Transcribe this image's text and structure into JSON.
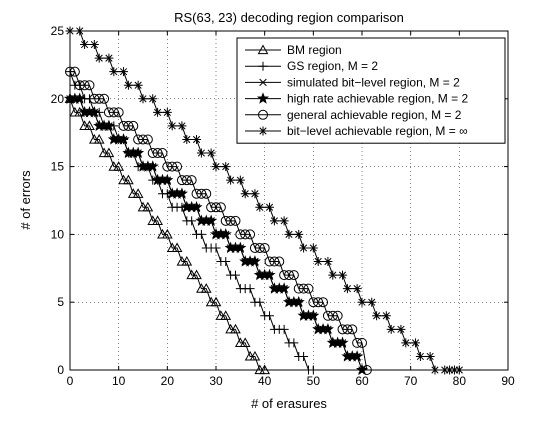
{
  "chart_data": {
    "type": "line",
    "title": "RS(63, 23) decoding region comparison",
    "xlabel": "# of erasures",
    "ylabel": "# of errors",
    "xlim": [
      0,
      90
    ],
    "ylim": [
      0,
      25
    ],
    "xticks": [
      0,
      10,
      20,
      30,
      40,
      50,
      60,
      70,
      80,
      90
    ],
    "yticks": [
      0,
      5,
      10,
      15,
      20,
      25
    ],
    "xtick_labels": [
      "0",
      "10",
      "20",
      "30",
      "40",
      "50",
      "60",
      "70",
      "80",
      "90"
    ],
    "ytick_labels": [
      "0",
      "5",
      "10",
      "15",
      "20",
      "25"
    ],
    "grid": true,
    "legend_position": "top-right",
    "line_color": "#000000",
    "series": [
      {
        "name": "BM region",
        "marker": "triangle",
        "points": [
          [
            0,
            20
          ],
          [
            1,
            19
          ],
          [
            2,
            19
          ],
          [
            3,
            18
          ],
          [
            4,
            18
          ],
          [
            5,
            17
          ],
          [
            6,
            17
          ],
          [
            7,
            16
          ],
          [
            8,
            16
          ],
          [
            9,
            15
          ],
          [
            10,
            15
          ],
          [
            11,
            14
          ],
          [
            12,
            14
          ],
          [
            13,
            13
          ],
          [
            14,
            13
          ],
          [
            15,
            12
          ],
          [
            16,
            12
          ],
          [
            17,
            11
          ],
          [
            18,
            11
          ],
          [
            19,
            10
          ],
          [
            20,
            10
          ],
          [
            21,
            9
          ],
          [
            22,
            9
          ],
          [
            23,
            8
          ],
          [
            24,
            8
          ],
          [
            25,
            7
          ],
          [
            26,
            7
          ],
          [
            27,
            6
          ],
          [
            28,
            6
          ],
          [
            29,
            5
          ],
          [
            30,
            5
          ],
          [
            31,
            4
          ],
          [
            32,
            4
          ],
          [
            33,
            3
          ],
          [
            34,
            3
          ],
          [
            35,
            2
          ],
          [
            36,
            2
          ],
          [
            37,
            1
          ],
          [
            38,
            1
          ],
          [
            39,
            0
          ],
          [
            40,
            0
          ]
        ]
      },
      {
        "name": "GS region, M = 2",
        "marker": "plus",
        "points": [
          [
            0,
            22
          ],
          [
            1,
            21
          ],
          [
            2,
            21
          ],
          [
            3,
            20
          ],
          [
            4,
            20
          ],
          [
            5,
            19
          ],
          [
            6,
            19
          ],
          [
            7,
            18
          ],
          [
            8,
            18
          ],
          [
            9,
            18
          ],
          [
            10,
            17
          ],
          [
            11,
            17
          ],
          [
            12,
            16
          ],
          [
            13,
            16
          ],
          [
            14,
            15
          ],
          [
            15,
            15
          ],
          [
            16,
            15
          ],
          [
            17,
            14
          ],
          [
            18,
            14
          ],
          [
            19,
            13
          ],
          [
            20,
            13
          ],
          [
            21,
            12
          ],
          [
            22,
            12
          ],
          [
            23,
            12
          ],
          [
            24,
            11
          ],
          [
            25,
            11
          ],
          [
            26,
            10
          ],
          [
            27,
            10
          ],
          [
            28,
            9
          ],
          [
            29,
            9
          ],
          [
            30,
            9
          ],
          [
            31,
            8
          ],
          [
            32,
            8
          ],
          [
            33,
            7
          ],
          [
            34,
            7
          ],
          [
            35,
            6
          ],
          [
            36,
            6
          ],
          [
            37,
            6
          ],
          [
            38,
            5
          ],
          [
            39,
            5
          ],
          [
            40,
            4
          ],
          [
            41,
            4
          ],
          [
            42,
            3
          ],
          [
            43,
            3
          ],
          [
            44,
            3
          ],
          [
            45,
            2
          ],
          [
            46,
            2
          ],
          [
            47,
            1
          ],
          [
            48,
            1
          ],
          [
            49,
            0
          ],
          [
            50,
            0
          ]
        ]
      },
      {
        "name": "simulated bit−level region, M = 2",
        "marker": "x",
        "points": [
          [
            0,
            20
          ],
          [
            1,
            20
          ],
          [
            2,
            20
          ],
          [
            3,
            19
          ],
          [
            4,
            19
          ],
          [
            5,
            19
          ],
          [
            6,
            18
          ],
          [
            7,
            18
          ],
          [
            8,
            18
          ],
          [
            9,
            17
          ],
          [
            10,
            17
          ],
          [
            11,
            17
          ],
          [
            12,
            16
          ],
          [
            13,
            16
          ],
          [
            14,
            16
          ],
          [
            15,
            15
          ],
          [
            16,
            15
          ],
          [
            17,
            15
          ],
          [
            18,
            14
          ],
          [
            19,
            14
          ],
          [
            20,
            14
          ],
          [
            21,
            13
          ],
          [
            22,
            13
          ],
          [
            23,
            13
          ],
          [
            24,
            12
          ],
          [
            25,
            12
          ],
          [
            26,
            12
          ],
          [
            27,
            11
          ],
          [
            28,
            11
          ],
          [
            29,
            11
          ],
          [
            30,
            10
          ],
          [
            31,
            10
          ],
          [
            32,
            10
          ],
          [
            33,
            9
          ],
          [
            34,
            9
          ],
          [
            35,
            9
          ],
          [
            36,
            8
          ],
          [
            37,
            8
          ],
          [
            38,
            8
          ],
          [
            39,
            7
          ],
          [
            40,
            7
          ],
          [
            41,
            7
          ],
          [
            42,
            6
          ],
          [
            43,
            6
          ],
          [
            44,
            6
          ],
          [
            45,
            5
          ],
          [
            46,
            5
          ],
          [
            47,
            5
          ],
          [
            48,
            4
          ],
          [
            49,
            4
          ],
          [
            50,
            4
          ],
          [
            51,
            3
          ],
          [
            52,
            3
          ],
          [
            53,
            3
          ],
          [
            54,
            2
          ],
          [
            55,
            2
          ],
          [
            56,
            2
          ],
          [
            57,
            1
          ],
          [
            58,
            1
          ],
          [
            59,
            1
          ],
          [
            60,
            0
          ]
        ]
      },
      {
        "name": "high rate achievable region, M = 2",
        "marker": "star",
        "points": [
          [
            0,
            20
          ],
          [
            1,
            20
          ],
          [
            2,
            20
          ],
          [
            3,
            19
          ],
          [
            4,
            19
          ],
          [
            5,
            19
          ],
          [
            6,
            18
          ],
          [
            7,
            18
          ],
          [
            8,
            18
          ],
          [
            9,
            17
          ],
          [
            10,
            17
          ],
          [
            11,
            17
          ],
          [
            12,
            16
          ],
          [
            13,
            16
          ],
          [
            14,
            16
          ],
          [
            15,
            15
          ],
          [
            16,
            15
          ],
          [
            17,
            15
          ],
          [
            18,
            14
          ],
          [
            19,
            14
          ],
          [
            20,
            14
          ],
          [
            21,
            13
          ],
          [
            22,
            13
          ],
          [
            23,
            13
          ],
          [
            24,
            12
          ],
          [
            25,
            12
          ],
          [
            26,
            12
          ],
          [
            27,
            11
          ],
          [
            28,
            11
          ],
          [
            29,
            11
          ],
          [
            30,
            10
          ],
          [
            31,
            10
          ],
          [
            32,
            10
          ],
          [
            33,
            9
          ],
          [
            34,
            9
          ],
          [
            35,
            9
          ],
          [
            36,
            8
          ],
          [
            37,
            8
          ],
          [
            38,
            8
          ],
          [
            39,
            7
          ],
          [
            40,
            7
          ],
          [
            41,
            7
          ],
          [
            42,
            6
          ],
          [
            43,
            6
          ],
          [
            44,
            6
          ],
          [
            45,
            5
          ],
          [
            46,
            5
          ],
          [
            47,
            5
          ],
          [
            48,
            4
          ],
          [
            49,
            4
          ],
          [
            50,
            4
          ],
          [
            51,
            3
          ],
          [
            52,
            3
          ],
          [
            53,
            3
          ],
          [
            54,
            2
          ],
          [
            55,
            2
          ],
          [
            56,
            2
          ],
          [
            57,
            1
          ],
          [
            58,
            1
          ],
          [
            59,
            1
          ],
          [
            60,
            0
          ]
        ]
      },
      {
        "name": "general achievable region, M = 2",
        "marker": "circle",
        "points": [
          [
            0,
            22
          ],
          [
            1,
            22
          ],
          [
            2,
            21
          ],
          [
            3,
            21
          ],
          [
            4,
            21
          ],
          [
            5,
            20
          ],
          [
            6,
            20
          ],
          [
            7,
            20
          ],
          [
            8,
            19
          ],
          [
            9,
            19
          ],
          [
            10,
            19
          ],
          [
            11,
            18
          ],
          [
            12,
            18
          ],
          [
            13,
            18
          ],
          [
            14,
            17
          ],
          [
            15,
            17
          ],
          [
            16,
            17
          ],
          [
            17,
            16
          ],
          [
            18,
            16
          ],
          [
            19,
            16
          ],
          [
            20,
            15
          ],
          [
            21,
            15
          ],
          [
            22,
            15
          ],
          [
            23,
            14
          ],
          [
            24,
            14
          ],
          [
            25,
            14
          ],
          [
            26,
            13
          ],
          [
            27,
            13
          ],
          [
            28,
            13
          ],
          [
            29,
            12
          ],
          [
            30,
            12
          ],
          [
            31,
            12
          ],
          [
            32,
            11
          ],
          [
            33,
            11
          ],
          [
            34,
            11
          ],
          [
            35,
            10
          ],
          [
            36,
            10
          ],
          [
            37,
            10
          ],
          [
            38,
            9
          ],
          [
            39,
            9
          ],
          [
            40,
            9
          ],
          [
            41,
            8
          ],
          [
            42,
            8
          ],
          [
            43,
            8
          ],
          [
            44,
            7
          ],
          [
            45,
            7
          ],
          [
            46,
            7
          ],
          [
            47,
            6
          ],
          [
            48,
            6
          ],
          [
            49,
            6
          ],
          [
            50,
            5
          ],
          [
            51,
            5
          ],
          [
            52,
            5
          ],
          [
            53,
            4
          ],
          [
            54,
            4
          ],
          [
            55,
            4
          ],
          [
            56,
            3
          ],
          [
            57,
            3
          ],
          [
            58,
            3
          ],
          [
            59,
            2
          ],
          [
            60,
            2
          ],
          [
            61,
            0
          ]
        ]
      },
      {
        "name": "bit−level achievable region, M = ∞",
        "marker": "asterisk",
        "points": [
          [
            0,
            25
          ],
          [
            2,
            25
          ],
          [
            3,
            24
          ],
          [
            5,
            24
          ],
          [
            6,
            23
          ],
          [
            8,
            23
          ],
          [
            9,
            22
          ],
          [
            11,
            22
          ],
          [
            12,
            21
          ],
          [
            14,
            21
          ],
          [
            15,
            20
          ],
          [
            17,
            20
          ],
          [
            18,
            19
          ],
          [
            20,
            19
          ],
          [
            21,
            18
          ],
          [
            23,
            18
          ],
          [
            24,
            17
          ],
          [
            26,
            17
          ],
          [
            27,
            16
          ],
          [
            29,
            16
          ],
          [
            30,
            15
          ],
          [
            32,
            15
          ],
          [
            33,
            14
          ],
          [
            35,
            14
          ],
          [
            36,
            13
          ],
          [
            38,
            13
          ],
          [
            39,
            12
          ],
          [
            41,
            12
          ],
          [
            42,
            11
          ],
          [
            44,
            11
          ],
          [
            45,
            10
          ],
          [
            47,
            10
          ],
          [
            48,
            9
          ],
          [
            50,
            9
          ],
          [
            51,
            8
          ],
          [
            53,
            8
          ],
          [
            54,
            7
          ],
          [
            56,
            7
          ],
          [
            57,
            6
          ],
          [
            59,
            6
          ],
          [
            60,
            5
          ],
          [
            62,
            5
          ],
          [
            63,
            4
          ],
          [
            65,
            4
          ],
          [
            66,
            3
          ],
          [
            68,
            3
          ],
          [
            69,
            2
          ],
          [
            71,
            2
          ],
          [
            72,
            1
          ],
          [
            74,
            1
          ],
          [
            75,
            0
          ],
          [
            77,
            0
          ],
          [
            78,
            0
          ],
          [
            79,
            0
          ],
          [
            80,
            0
          ]
        ]
      }
    ]
  }
}
